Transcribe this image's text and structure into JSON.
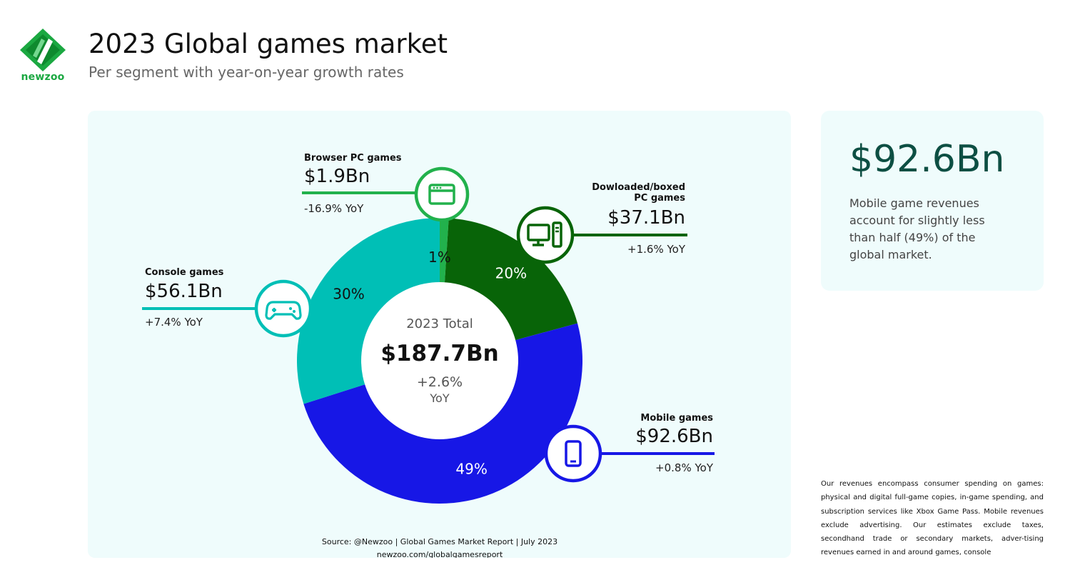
{
  "brand": {
    "logo_text": "newzoo",
    "logo_color": "#1ba841"
  },
  "header": {
    "title": "2023 Global games market",
    "subtitle": "Per segment with year-on-year growth rates"
  },
  "chart_data": {
    "type": "pie",
    "variant": "donut",
    "center": {
      "label": "2023 Total",
      "value": "$187.7Bn",
      "growth": "+2.6%",
      "growth_unit": "YoY"
    },
    "slices": [
      {
        "name": "Browser PC games",
        "value_bn": 1.9,
        "value_label": "$1.9Bn",
        "share_label": "1%",
        "yoy": "-16.9% YoY",
        "color": "#22b14c",
        "label_color": "#111111"
      },
      {
        "name": "Dowloaded/boxed PC games",
        "name_lines": [
          "Dowloaded/boxed",
          "PC games"
        ],
        "value_bn": 37.1,
        "value_label": "$37.1Bn",
        "share_label": "20%",
        "yoy": "+1.6% YoY",
        "color": "#086408",
        "label_color": "#ffffff"
      },
      {
        "name": "Mobile games",
        "value_bn": 92.6,
        "value_label": "$92.6Bn",
        "share_label": "49%",
        "yoy": "+0.8% YoY",
        "color": "#1717e6",
        "label_color": "#ffffff"
      },
      {
        "name": "Console games",
        "value_bn": 56.1,
        "value_label": "$56.1Bn",
        "share_label": "30%",
        "yoy": "+7.4% YoY",
        "color": "#00bfb6",
        "label_color": "#111111"
      }
    ],
    "legend": "none",
    "source": "Source: @Newzoo | Global Games Market Report | July 2023",
    "source_url": "newzoo.com/globalgamesreport"
  },
  "icons": {
    "browser": "browser-window-icon",
    "pc": "desktop-pc-icon",
    "mobile": "smartphone-icon",
    "console": "gamepad-icon"
  },
  "highlight": {
    "value": "$92.6Bn",
    "description": "Mobile game revenues account for slightly less than half (49%) of the global market."
  },
  "footnote": "Our revenues encompass consumer spending on games: physical and digital full-game copies, in-game spending, and subscription services like Xbox Game Pass. Mobile revenues exclude advertising. Our estimates exclude taxes, secondhand trade or secondary markets, adver-tising revenues earned in and around games, console"
}
